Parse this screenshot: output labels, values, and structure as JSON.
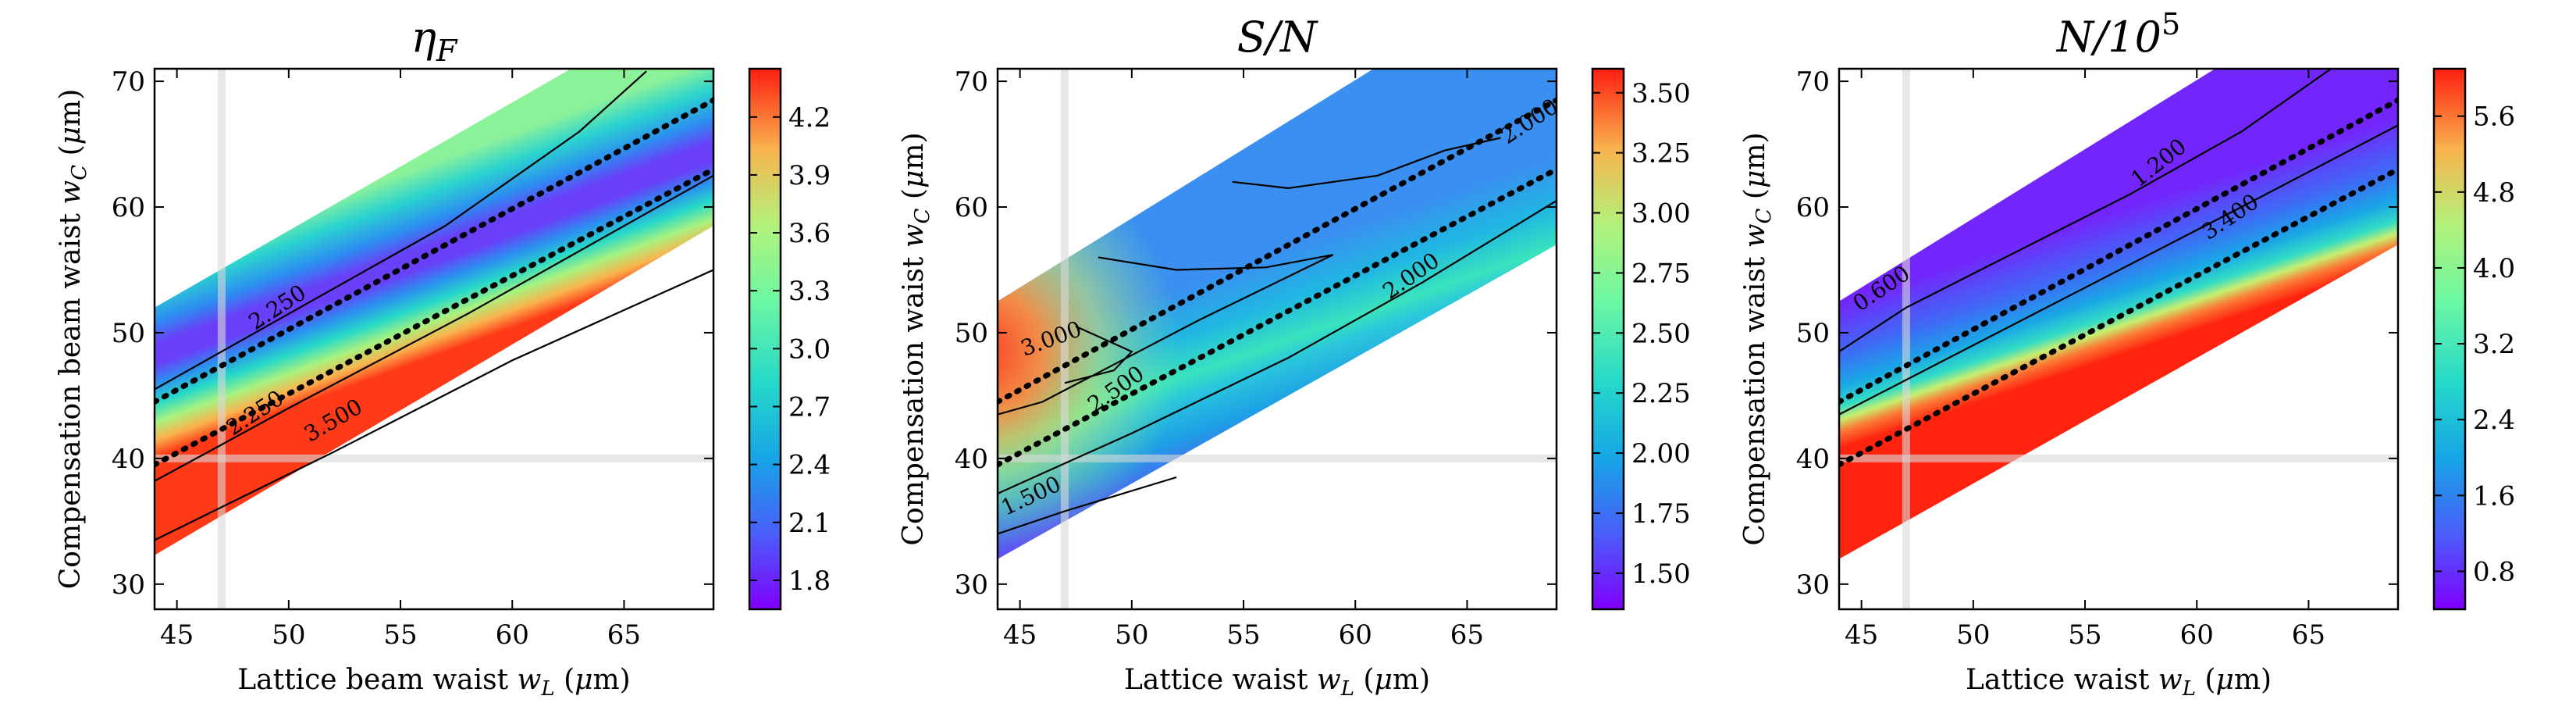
{
  "chart_data": [
    {
      "type": "heatmap",
      "title": "η_F",
      "title_main": "η",
      "title_sub": "F",
      "xlabel": "Lattice beam waist w_L (μm)",
      "xlabel_parts": [
        "Lattice beam waist ",
        "w",
        "L",
        " (",
        "μ",
        "m)"
      ],
      "ylabel": "Compensation beam waist w_C (μm)",
      "ylabel_parts": [
        "Compensation beam waist ",
        "w",
        "C",
        " (",
        "μ",
        "m)"
      ],
      "xlim": [
        44,
        69
      ],
      "ylim": [
        28,
        71
      ],
      "xticks": [
        45,
        50,
        55,
        60,
        65
      ],
      "yticks": [
        30,
        40,
        50,
        60,
        70
      ],
      "colormap": "rainbow",
      "colorbar": {
        "min": 1.65,
        "max": 4.45,
        "ticks": [
          "1.8",
          "2.1",
          "2.4",
          "2.7",
          "3.0",
          "3.3",
          "3.6",
          "3.9",
          "4.2"
        ]
      },
      "contour_labels": [
        "2.250",
        "2.250",
        "3.500"
      ],
      "highlight_lines": {
        "x": 47,
        "y": 40
      }
    },
    {
      "type": "heatmap",
      "title": "S/N",
      "title_main": "S/N",
      "xlabel": "Lattice waist w_L (μm)",
      "xlabel_parts": [
        "Lattice waist ",
        "w",
        "L",
        " (",
        "μ",
        "m)"
      ],
      "ylabel": "Compensation waist w_C (μm)",
      "ylabel_parts": [
        "Compensation waist ",
        "w",
        "C",
        " (",
        "μ",
        "m)"
      ],
      "xlim": [
        44,
        69
      ],
      "ylim": [
        28,
        71
      ],
      "xticks": [
        45,
        50,
        55,
        60,
        65
      ],
      "yticks": [
        30,
        40,
        50,
        60,
        70
      ],
      "colormap": "rainbow",
      "colorbar": {
        "min": 1.35,
        "max": 3.6,
        "ticks": [
          "1.50",
          "1.75",
          "2.00",
          "2.25",
          "2.50",
          "2.75",
          "3.00",
          "3.25",
          "3.50"
        ]
      },
      "contour_labels": [
        "3.000",
        "2.500",
        "2.000",
        "2.000",
        "1.500"
      ],
      "highlight_lines": {
        "x": 47,
        "y": 40
      }
    },
    {
      "type": "heatmap",
      "title": "N/10^5",
      "title_main": "N/10",
      "title_sup": "5",
      "xlabel": "Lattice waist w_L (μm)",
      "xlabel_parts": [
        "Lattice waist ",
        "w",
        "L",
        " (",
        "μ",
        "m)"
      ],
      "ylabel": "Compensation waist w_C (μm)",
      "ylabel_parts": [
        "Compensation waist ",
        "w",
        "C",
        " (",
        "μ",
        "m)"
      ],
      "xlim": [
        44,
        69
      ],
      "ylim": [
        28,
        71
      ],
      "xticks": [
        45,
        50,
        55,
        60,
        65
      ],
      "yticks": [
        30,
        40,
        50,
        60,
        70
      ],
      "colormap": "rainbow",
      "colorbar": {
        "min": 0.4,
        "max": 6.1,
        "ticks": [
          "0.8",
          "1.6",
          "2.4",
          "3.2",
          "4.0",
          "4.8",
          "5.6"
        ]
      },
      "contour_labels": [
        "0.600",
        "1.200",
        "3.400"
      ],
      "highlight_lines": {
        "x": 47,
        "y": 40
      }
    }
  ]
}
